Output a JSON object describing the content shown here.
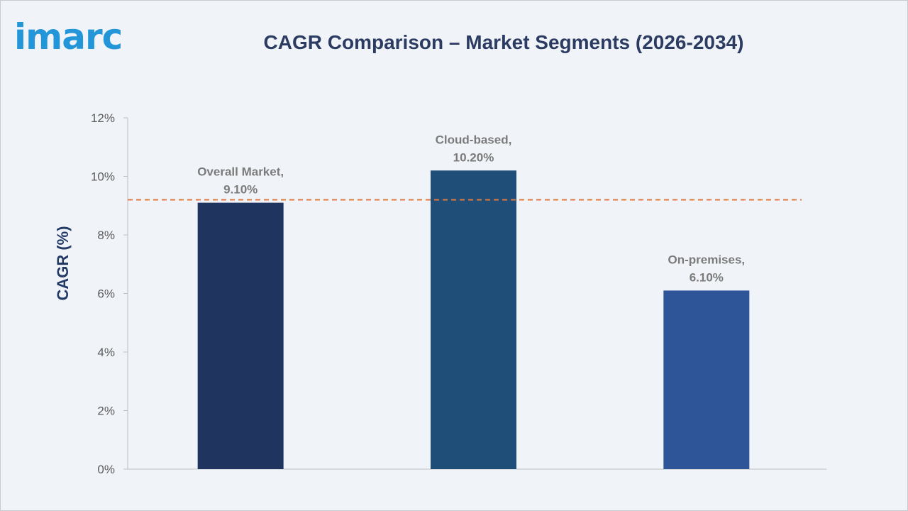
{
  "logo": {
    "text": "imarc",
    "dot_color": "#1ca7e0",
    "color": "#2296d8"
  },
  "chart_data": {
    "type": "bar",
    "title": "CAGR Comparison – Market Segments (2026-2034)",
    "xlabel": "",
    "ylabel": "CAGR (%)",
    "ylim": [
      0,
      12
    ],
    "yticks": [
      0,
      2,
      4,
      6,
      8,
      10,
      12
    ],
    "ytick_labels": [
      "0%",
      "2%",
      "4%",
      "6%",
      "8%",
      "10%",
      "12%"
    ],
    "categories": [
      "Overall Market",
      "Cloud-based",
      "On-premises"
    ],
    "values": [
      9.1,
      10.2,
      6.1
    ],
    "data_labels": [
      [
        "Overall Market,",
        "9.10%"
      ],
      [
        "Cloud-based,",
        "10.20%"
      ],
      [
        "On-premises,",
        "6.10%"
      ]
    ],
    "bar_colors": [
      "#1f3560",
      "#1f4e79",
      "#2e5597"
    ],
    "reference_line": {
      "value": 9.2,
      "color": "#e07a3f",
      "style": "dashed"
    },
    "grid": false,
    "legend": "none"
  }
}
